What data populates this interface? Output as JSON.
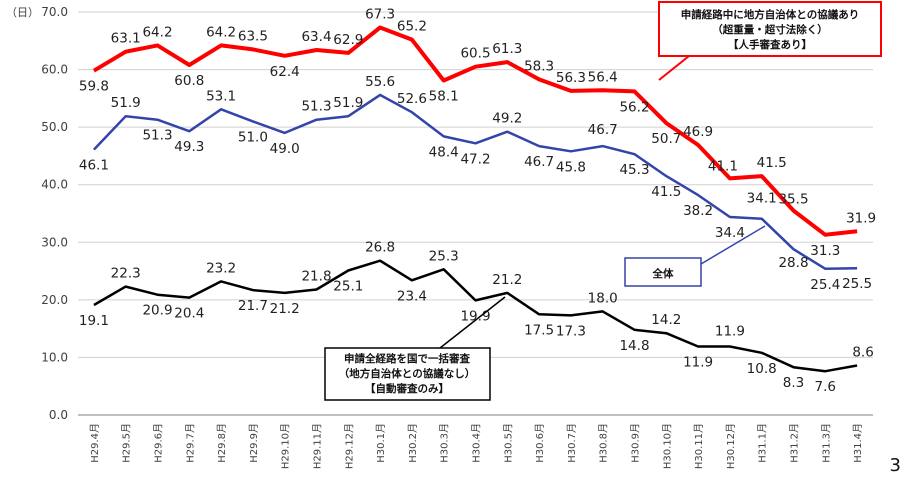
{
  "chart_data": {
    "type": "line",
    "title": "",
    "ylabel": "（日）",
    "xlabel": "",
    "ylim": [
      0,
      70
    ],
    "yticks": [
      "0.0",
      "10.0",
      "20.0",
      "30.0",
      "40.0",
      "50.0",
      "60.0",
      "70.0"
    ],
    "grid": true,
    "categories": [
      "H29.4月",
      "H29.5月",
      "H29.6月",
      "H29.7月",
      "H29.8月",
      "H29.9月",
      "H29.10月",
      "H29.11月",
      "H29.12月",
      "H30.1月",
      "H30.2月",
      "H30.3月",
      "H30.4月",
      "H30.5月",
      "H30.6月",
      "H30.7月",
      "H30.8月",
      "H30.9月",
      "H30.10月",
      "H30.11月",
      "H30.12月",
      "H31.1月",
      "H31.2月",
      "H31.3月",
      "H31.4月"
    ],
    "series": [
      {
        "key": "manual",
        "color": "#ff0000",
        "values": [
          59.8,
          63.1,
          64.2,
          60.8,
          64.2,
          63.5,
          62.4,
          63.4,
          62.9,
          67.3,
          65.2,
          58.1,
          60.5,
          61.3,
          58.3,
          56.3,
          56.4,
          56.2,
          50.7,
          46.9,
          41.1,
          41.5,
          35.5,
          31.3,
          31.9
        ]
      },
      {
        "key": "total",
        "color": "#3344aa",
        "values": [
          46.1,
          51.9,
          51.3,
          49.3,
          53.1,
          51.0,
          49.0,
          51.3,
          51.9,
          55.6,
          52.6,
          48.4,
          47.2,
          49.2,
          46.7,
          45.8,
          46.7,
          45.3,
          41.5,
          38.2,
          34.4,
          34.1,
          28.8,
          25.4,
          25.5
        ]
      },
      {
        "key": "auto",
        "color": "#000000",
        "values": [
          19.1,
          22.3,
          20.9,
          20.4,
          23.2,
          21.7,
          21.2,
          21.8,
          25.1,
          26.8,
          23.4,
          25.3,
          19.9,
          21.2,
          17.5,
          17.3,
          18.0,
          14.8,
          14.2,
          11.9,
          11.9,
          10.8,
          8.3,
          7.6,
          8.6
        ]
      }
    ],
    "annotations": {
      "manual": [
        "申請経路中に地方自治体との協議あり",
        "（超重量・超寸法除く）",
        "【人手審査あり】"
      ],
      "total": [
        "全体"
      ],
      "auto": [
        "申請全経路を国で一括審査",
        "（地方自治体との協議なし）",
        "【自動審査のみ】"
      ]
    }
  },
  "page_number": "3"
}
